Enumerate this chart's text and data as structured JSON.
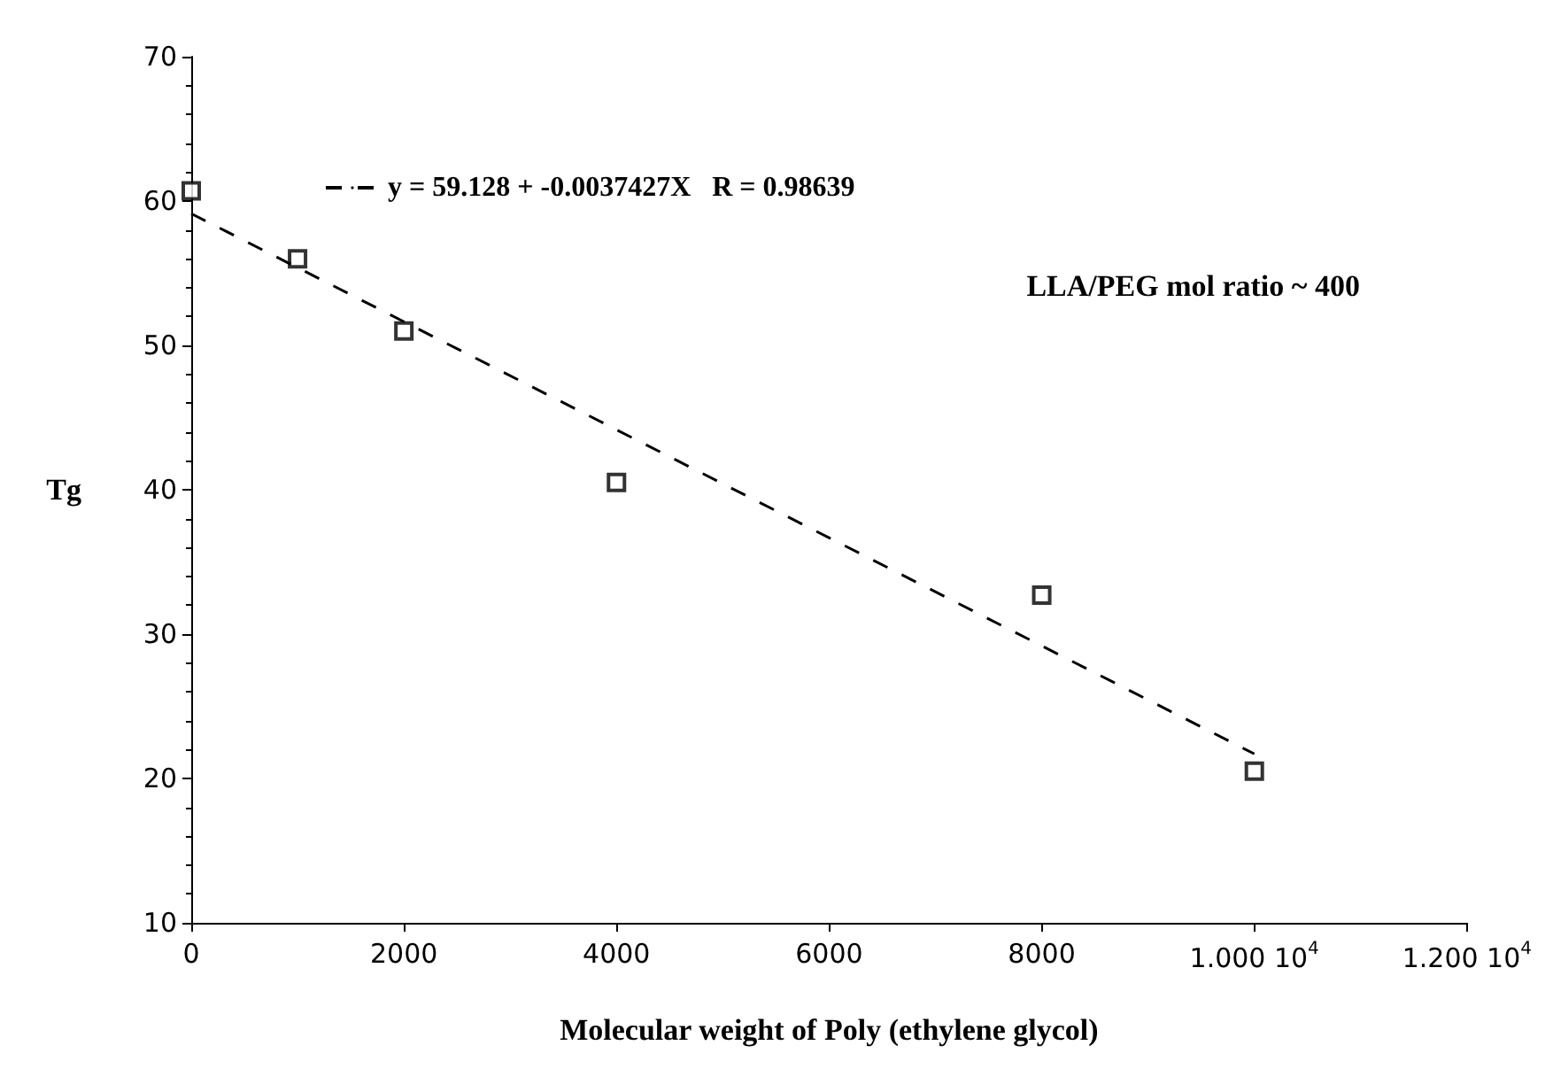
{
  "chart_data": {
    "type": "scatter",
    "xlabel": "Molecular weight of Poly (ethylene glycol)",
    "ylabel": "Tg",
    "xlim": [
      0,
      12000
    ],
    "xticks": [
      0,
      2000,
      4000,
      6000,
      8000,
      {
        "value": 10000,
        "label": "1.000 10$^{4}$"
      },
      {
        "value": 12000,
        "label": "1.200 10$^{4}$"
      }
    ],
    "ylim": [
      10,
      70
    ],
    "yticks": [
      10,
      20,
      30,
      40,
      50,
      60,
      70
    ],
    "grid": false,
    "marker": "square",
    "legend": "top",
    "series": [
      {
        "color": "#000000",
        "x": [
          0,
          1000,
          2000,
          4000,
          8000,
          10000
        ],
        "values": [
          60.7,
          56,
          51,
          40.5,
          32.7,
          20.5
        ]
      },
      {
        "type": "line",
        "name": "y = 59.128 + -0.0037427X   R = 0.98639",
        "color": "#000000",
        "line_style": "dashed",
        "marker": "none",
        "x": [
          0,
          10000
        ],
        "values": [
          59.128,
          21.701
        ]
      }
    ],
    "annotations": [
      {
        "text": "LLA/PEG mol ratio ~ 400"
      }
    ]
  }
}
